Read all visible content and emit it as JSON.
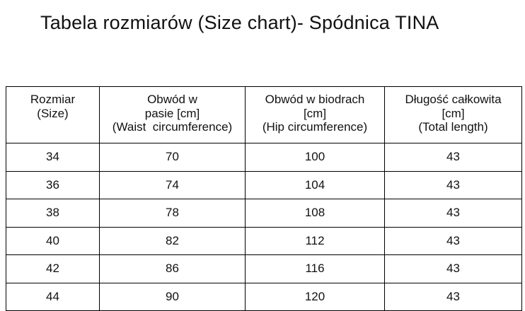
{
  "page": {
    "title": "Tabela rozmiarów (Size chart)- Spódnica TINA"
  },
  "table": {
    "headers": [
      {
        "id": "size",
        "text": "Rozmiar\n(Size)"
      },
      {
        "id": "waist",
        "text": "Obwód w\npasie [cm]\n(Waist  circumference)"
      },
      {
        "id": "hip",
        "text": "Obwód w biodrach\n[cm]\n(Hip circumference)"
      },
      {
        "id": "length",
        "text": "Długość całkowita\n[cm]\n(Total length)"
      }
    ],
    "rows": [
      [
        "34",
        "70",
        "100",
        "43"
      ],
      [
        "36",
        "74",
        "104",
        "43"
      ],
      [
        "38",
        "78",
        "108",
        "43"
      ],
      [
        "40",
        "82",
        "112",
        "43"
      ],
      [
        "42",
        "86",
        "116",
        "43"
      ],
      [
        "44",
        "90",
        "120",
        "43"
      ]
    ]
  }
}
